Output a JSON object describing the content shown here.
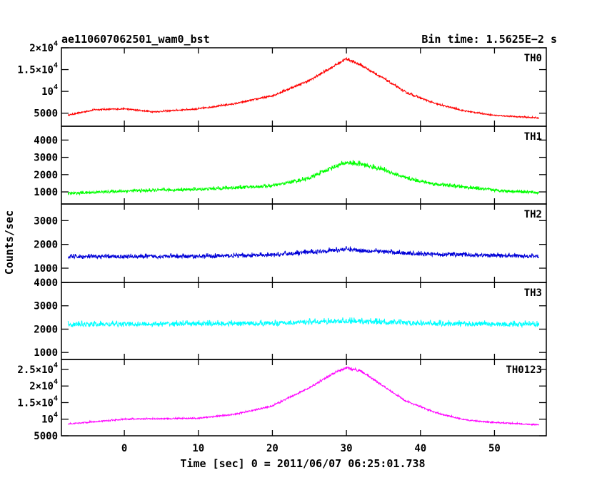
{
  "header": {
    "title": "ae110607062501_wam0_bst",
    "bin_time": "Bin time: 1.5625E−2 s"
  },
  "chart_data": {
    "type": "line",
    "xlabel": "Time [sec] 0 = 2011/06/07 06:25:01.738",
    "ylabel": "Counts/sec",
    "xlim": [
      -8.5,
      57
    ],
    "xticks": [
      "0",
      "10",
      "20",
      "30",
      "40",
      "50"
    ],
    "xtick_values": [
      0,
      10,
      20,
      30,
      40,
      50
    ],
    "data_range": [
      -7.6,
      56
    ],
    "bin_time_s": 0.015625,
    "panels": [
      {
        "name": "TH0",
        "color": "#ff0000",
        "ylim": [
          2000,
          20000
        ],
        "yticks": [
          {
            "value": 5000,
            "label": "5000"
          },
          {
            "value": 10000,
            "label": "10",
            "exp": "4"
          },
          {
            "value": 15000,
            "label": "1.5×10",
            "exp": "4"
          },
          {
            "value": 20000,
            "label": "2×10",
            "exp": "4"
          }
        ],
        "profile": [
          [
            -8,
            4400
          ],
          [
            -4,
            5800
          ],
          [
            0,
            6000
          ],
          [
            4,
            5300
          ],
          [
            10,
            6000
          ],
          [
            15,
            7200
          ],
          [
            20,
            9000
          ],
          [
            25,
            12500
          ],
          [
            28,
            15500
          ],
          [
            30,
            17500
          ],
          [
            32,
            16000
          ],
          [
            35,
            13000
          ],
          [
            38,
            9800
          ],
          [
            42,
            7200
          ],
          [
            46,
            5500
          ],
          [
            50,
            4500
          ],
          [
            56,
            3900
          ]
        ],
        "spread": 1.3
      },
      {
        "name": "TH1",
        "color": "#00ff00",
        "ylim": [
          300,
          4800
        ],
        "yticks": [
          {
            "value": 1000,
            "label": "1000"
          },
          {
            "value": 2000,
            "label": "2000"
          },
          {
            "value": 3000,
            "label": "3000"
          },
          {
            "value": 4000,
            "label": "4000"
          }
        ],
        "profile": [
          [
            -8,
            900
          ],
          [
            0,
            1050
          ],
          [
            10,
            1150
          ],
          [
            20,
            1350
          ],
          [
            25,
            1800
          ],
          [
            28,
            2400
          ],
          [
            30,
            2700
          ],
          [
            32,
            2600
          ],
          [
            35,
            2300
          ],
          [
            38,
            1800
          ],
          [
            42,
            1450
          ],
          [
            50,
            1100
          ],
          [
            56,
            950
          ]
        ],
        "spread": 1.5
      },
      {
        "name": "TH2",
        "color": "#0000d8",
        "ylim": [
          400,
          3700
        ],
        "yticks": [
          {
            "value": 1000,
            "label": "1000"
          },
          {
            "value": 2000,
            "label": "2000"
          },
          {
            "value": 3000,
            "label": "3000"
          }
        ],
        "profile": [
          [
            -8,
            1480
          ],
          [
            10,
            1500
          ],
          [
            20,
            1550
          ],
          [
            28,
            1750
          ],
          [
            30,
            1800
          ],
          [
            32,
            1750
          ],
          [
            40,
            1600
          ],
          [
            56,
            1500
          ]
        ],
        "spread": 1.25
      },
      {
        "name": "TH3",
        "color": "#00ffff",
        "ylim": [
          700,
          4000
        ],
        "yticks": [
          {
            "value": 1000,
            "label": "1000"
          },
          {
            "value": 2000,
            "label": "2000"
          },
          {
            "value": 3000,
            "label": "3000"
          },
          {
            "value": 4000,
            "label": "4000"
          }
        ],
        "profile": [
          [
            -8,
            2200
          ],
          [
            20,
            2250
          ],
          [
            30,
            2350
          ],
          [
            40,
            2250
          ],
          [
            56,
            2200
          ]
        ],
        "spread": 1.3
      },
      {
        "name": "TH0123",
        "color": "#ff00ff",
        "ylim": [
          5000,
          28000
        ],
        "yticks": [
          {
            "value": 5000,
            "label": "5000"
          },
          {
            "value": 10000,
            "label": "10",
            "exp": "4"
          },
          {
            "value": 15000,
            "label": "1.5×10",
            "exp": "4"
          },
          {
            "value": 20000,
            "label": "2×10",
            "exp": "4"
          },
          {
            "value": 25000,
            "label": "2.5×10",
            "exp": "4"
          }
        ],
        "profile": [
          [
            -8,
            8500
          ],
          [
            0,
            10000
          ],
          [
            10,
            10300
          ],
          [
            15,
            11500
          ],
          [
            20,
            14000
          ],
          [
            25,
            19500
          ],
          [
            28,
            23500
          ],
          [
            30,
            25500
          ],
          [
            32,
            24500
          ],
          [
            35,
            20000
          ],
          [
            38,
            15500
          ],
          [
            42,
            12000
          ],
          [
            46,
            9800
          ],
          [
            50,
            9000
          ],
          [
            56,
            8300
          ]
        ],
        "spread": 1.2
      }
    ]
  }
}
